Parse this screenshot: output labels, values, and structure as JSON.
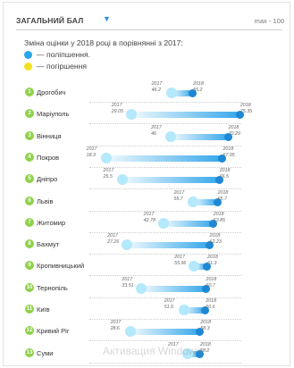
{
  "header": {
    "title": "ЗАГАЛЬНИЙ БАЛ",
    "dropdown_icon": "▼",
    "max_label": "max - 100"
  },
  "subtitle": "Зміна оцінки у 2018 році в порівнянні з 2017:",
  "legend": [
    {
      "label": "— поліпшення.",
      "color": "#29a7ea"
    },
    {
      "label": "— погіршення",
      "color": "#f3e21f"
    }
  ],
  "year_labels": {
    "from": "2017",
    "to": "2018"
  },
  "colors": {
    "rank_badge": "#8fd24a",
    "improve_start": "#b4e8fb",
    "improve_end": "#1e88d4"
  },
  "cities": [
    {
      "rank": "1",
      "name": "Дрогобич",
      "v2017": "46.2",
      "v2018": "55.2"
    },
    {
      "rank": "2",
      "name": "Маріуполь",
      "v2017": "29.05",
      "v2018": "75.35"
    },
    {
      "rank": "3",
      "name": "Вінниця",
      "v2017": "46",
      "v2018": "70.29"
    },
    {
      "rank": "4",
      "name": "Покров",
      "v2017": "18.3",
      "v2018": "67.95"
    },
    {
      "rank": "5",
      "name": "Дніпро",
      "v2017": "25.5",
      "v2018": "66.5"
    },
    {
      "rank": "6",
      "name": "Львів",
      "v2017": "55.7",
      "v2018": "65.7"
    },
    {
      "rank": "7",
      "name": "Житомир",
      "v2017": "42.78",
      "v2018": "63.85"
    },
    {
      "rank": "8",
      "name": "Бахмут",
      "v2017": "27.26",
      "v2018": "62.23"
    },
    {
      "rank": "9",
      "name": "Кропивницький",
      "v2017": "55.96",
      "v2018": "61.3"
    },
    {
      "rank": "10",
      "name": "Тернопіль",
      "v2017": "33.51",
      "v2018": "60.7"
    },
    {
      "rank": "11",
      "name": "Київ",
      "v2017": "51.6",
      "v2018": "60.6"
    },
    {
      "rank": "12",
      "name": "Кривий Ріг",
      "v2017": "28.6",
      "v2018": "58.3"
    },
    {
      "rank": "13",
      "name": "Суми",
      "v2017": "",
      "v2018": "58.2"
    }
  ],
  "watermark": "Активация Windows"
}
